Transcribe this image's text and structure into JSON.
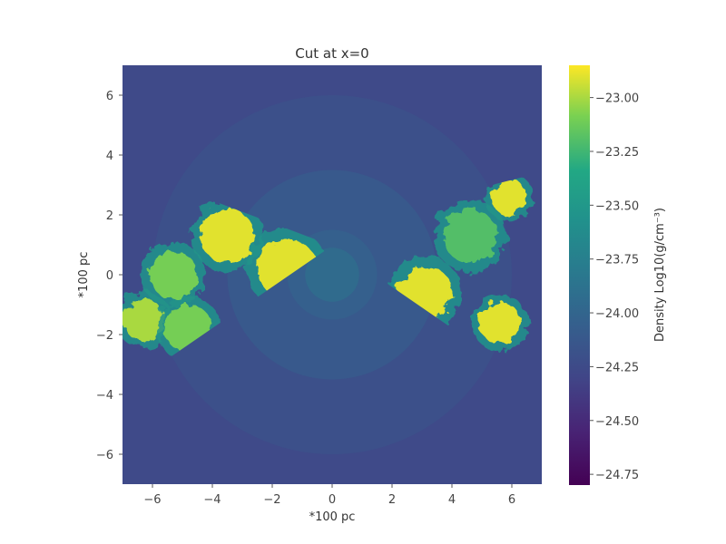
{
  "chart_data": {
    "type": "heatmap",
    "title": "Cut at x=0",
    "xlabel": "*100 pc",
    "ylabel": "*100 pc",
    "xlim": [
      -7,
      7
    ],
    "ylim": [
      -7,
      7
    ],
    "xticks": [
      "−6",
      "−4",
      "−2",
      "0",
      "2",
      "4",
      "6"
    ],
    "xtick_values": [
      -6,
      -4,
      -2,
      0,
      2,
      4,
      6
    ],
    "yticks": [
      "6",
      "4",
      "2",
      "0",
      "−2",
      "−4",
      "−6"
    ],
    "ytick_values": [
      6,
      4,
      2,
      0,
      -2,
      -4,
      -6
    ],
    "colormap": "viridis",
    "colorbar": {
      "label": "Density Log10(g/cm⁻³)",
      "range": [
        -24.8,
        -22.85
      ],
      "ticks": [
        "−23.00",
        "−23.25",
        "−23.50",
        "−23.75",
        "−24.00",
        "−24.25",
        "−24.50",
        "−24.75"
      ],
      "tick_values": [
        -23.0,
        -23.25,
        -23.5,
        -23.75,
        -24.0,
        -24.25,
        -24.5,
        -24.75
      ]
    },
    "background_rings": [
      {
        "r": 0,
        "value": -23.95
      },
      {
        "r": 1.5,
        "value": -24.05
      },
      {
        "r": 3.5,
        "value": -24.12
      },
      {
        "r": 6,
        "value": -24.2
      }
    ],
    "dense_regions": [
      {
        "x": -3.5,
        "y": 1.3,
        "r": 0.9,
        "value": -22.9
      },
      {
        "x": -1.5,
        "y": 0.2,
        "r": 1.0,
        "value": -22.9
      },
      {
        "x": 3.1,
        "y": -0.6,
        "r": 0.9,
        "value": -22.9
      },
      {
        "x": 5.6,
        "y": -1.6,
        "r": 0.7,
        "value": -22.9
      },
      {
        "x": 5.9,
        "y": 2.6,
        "r": 0.6,
        "value": -22.9
      },
      {
        "x": -6.3,
        "y": -1.5,
        "r": 0.7,
        "value": -23.0
      },
      {
        "x": -5.3,
        "y": 0.0,
        "r": 0.8,
        "value": -23.1
      },
      {
        "x": -4.8,
        "y": -1.8,
        "r": 0.8,
        "value": -23.1
      },
      {
        "x": 4.6,
        "y": 1.3,
        "r": 0.9,
        "value": -23.2
      }
    ]
  }
}
